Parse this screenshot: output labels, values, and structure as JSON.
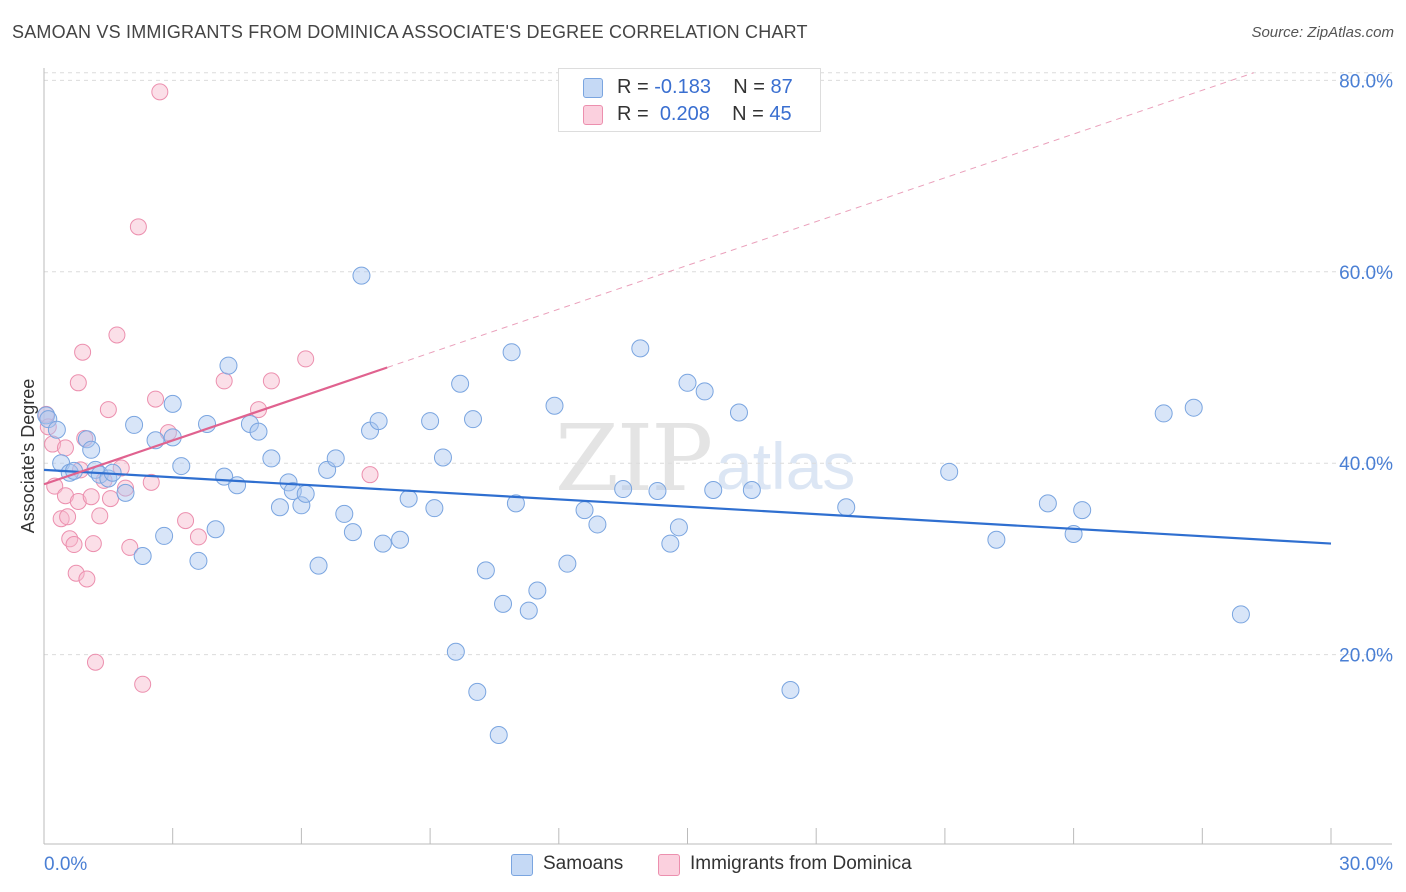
{
  "header": {
    "title": "SAMOAN VS IMMIGRANTS FROM DOMINICA ASSOCIATE'S DEGREE CORRELATION CHART",
    "source": "Source: ZipAtlas.com"
  },
  "watermark": {
    "zip": "ZIP",
    "atlas": "atlas"
  },
  "legend": {
    "rows": [
      {
        "r_label": "R = ",
        "r_value": "-0.183",
        "n_label": "N = ",
        "n_value": "87",
        "color": "#a8c6f0"
      },
      {
        "r_label": "R = ",
        "r_value": "0.208",
        "n_label": "N = ",
        "n_value": "45",
        "color": "#f7b8cc"
      }
    ]
  },
  "bottom_legend": {
    "series1": "Samoans",
    "series2": "Immigrants from Dominica"
  },
  "colors": {
    "samoans_fill": "#a8c6f0",
    "samoans_stroke": "#7aa5e0",
    "samoans_line": "#2f6fd0",
    "dominica_fill": "#f7b8cc",
    "dominica_stroke": "#ec8fae",
    "dominica_line": "#e0628f",
    "axis_text": "#4a7fd4"
  },
  "chart_data": {
    "type": "scatter",
    "title": "SAMOAN VS IMMIGRANTS FROM DOMINICA ASSOCIATE'S DEGREE CORRELATION CHART",
    "xlabel": "",
    "ylabel": "Associate's Degree",
    "xlim": [
      0,
      30
    ],
    "ylim": [
      0,
      82
    ],
    "x_tick_labels": [
      "0.0%",
      "30.0%"
    ],
    "y_ticks": [
      20,
      40,
      60,
      80
    ],
    "y_tick_labels": [
      "20.0%",
      "40.0%",
      "60.0%",
      "80.0%"
    ],
    "grid": "horizontal dashed",
    "legend_position": "top-center",
    "series": [
      {
        "name": "Samoans",
        "stats": {
          "R": -0.183,
          "N": 87
        },
        "trend": {
          "x": [
            0.0,
            30.0
          ],
          "y": [
            39.3,
            31.6
          ],
          "style": "solid"
        },
        "points": [
          [
            0.05,
            45.0
          ],
          [
            0.1,
            44.6
          ],
          [
            0.3,
            43.5
          ],
          [
            0.4,
            40.0
          ],
          [
            0.6,
            39.0
          ],
          [
            0.7,
            39.2
          ],
          [
            1.0,
            42.5
          ],
          [
            1.1,
            41.4
          ],
          [
            1.2,
            39.3
          ],
          [
            1.3,
            38.8
          ],
          [
            1.5,
            38.4
          ],
          [
            1.6,
            39.0
          ],
          [
            1.9,
            36.9
          ],
          [
            2.1,
            44.0
          ],
          [
            2.3,
            30.3
          ],
          [
            2.6,
            42.4
          ],
          [
            2.8,
            32.4
          ],
          [
            3.0,
            42.7
          ],
          [
            3.0,
            46.2
          ],
          [
            3.2,
            39.7
          ],
          [
            3.6,
            29.8
          ],
          [
            3.8,
            44.1
          ],
          [
            4.0,
            33.1
          ],
          [
            4.2,
            38.6
          ],
          [
            4.3,
            50.2
          ],
          [
            4.5,
            37.7
          ],
          [
            4.8,
            44.1
          ],
          [
            5.0,
            43.3
          ],
          [
            5.3,
            40.5
          ],
          [
            5.5,
            35.4
          ],
          [
            5.7,
            38.0
          ],
          [
            5.8,
            37.1
          ],
          [
            6.0,
            35.6
          ],
          [
            6.1,
            36.8
          ],
          [
            6.4,
            29.3
          ],
          [
            6.6,
            39.3
          ],
          [
            6.8,
            40.5
          ],
          [
            7.0,
            34.7
          ],
          [
            7.2,
            32.8
          ],
          [
            7.4,
            59.6
          ],
          [
            7.6,
            43.4
          ],
          [
            7.8,
            44.4
          ],
          [
            7.9,
            31.6
          ],
          [
            8.3,
            32.0
          ],
          [
            8.5,
            36.3
          ],
          [
            9.0,
            44.4
          ],
          [
            9.1,
            35.3
          ],
          [
            9.3,
            40.6
          ],
          [
            9.6,
            20.3
          ],
          [
            9.7,
            48.3
          ],
          [
            10.0,
            44.6
          ],
          [
            10.1,
            16.1
          ],
          [
            10.3,
            28.8
          ],
          [
            10.6,
            11.6
          ],
          [
            10.7,
            25.3
          ],
          [
            10.9,
            51.6
          ],
          [
            11.0,
            35.8
          ],
          [
            11.3,
            24.6
          ],
          [
            11.5,
            26.7
          ],
          [
            11.9,
            46.0
          ],
          [
            12.2,
            29.5
          ],
          [
            12.6,
            35.1
          ],
          [
            12.9,
            33.6
          ],
          [
            13.5,
            37.3
          ],
          [
            13.9,
            52.0
          ],
          [
            14.3,
            37.1
          ],
          [
            14.6,
            31.6
          ],
          [
            14.8,
            33.3
          ],
          [
            15.0,
            48.4
          ],
          [
            15.4,
            47.5
          ],
          [
            15.6,
            37.2
          ],
          [
            16.2,
            45.3
          ],
          [
            16.5,
            37.2
          ],
          [
            17.4,
            16.3
          ],
          [
            18.7,
            35.4
          ],
          [
            21.1,
            39.1
          ],
          [
            22.2,
            32.0
          ],
          [
            23.4,
            35.8
          ],
          [
            24.0,
            32.6
          ],
          [
            24.2,
            35.1
          ],
          [
            26.1,
            45.2
          ],
          [
            26.8,
            45.8
          ],
          [
            27.9,
            24.2
          ]
        ]
      },
      {
        "name": "Immigrants from Dominica",
        "stats": {
          "R": 0.208,
          "N": 45
        },
        "trend_solid": {
          "x": [
            0.0,
            8.0
          ],
          "y": [
            37.8,
            50.0
          ]
        },
        "trend_dashed": {
          "x": [
            8.0,
            28.2
          ],
          "y": [
            50.0,
            80.8
          ]
        },
        "points": [
          [
            0.05,
            45.1
          ],
          [
            0.1,
            43.8
          ],
          [
            0.2,
            42.0
          ],
          [
            0.25,
            37.6
          ],
          [
            0.4,
            34.2
          ],
          [
            0.5,
            41.6
          ],
          [
            0.5,
            36.6
          ],
          [
            0.55,
            34.4
          ],
          [
            0.6,
            32.1
          ],
          [
            0.7,
            31.5
          ],
          [
            0.75,
            28.5
          ],
          [
            0.8,
            48.4
          ],
          [
            0.8,
            36.0
          ],
          [
            0.85,
            39.3
          ],
          [
            0.9,
            51.6
          ],
          [
            0.95,
            42.6
          ],
          [
            1.0,
            27.9
          ],
          [
            1.1,
            36.5
          ],
          [
            1.15,
            31.6
          ],
          [
            1.2,
            19.2
          ],
          [
            1.3,
            34.5
          ],
          [
            1.4,
            38.2
          ],
          [
            1.5,
            45.6
          ],
          [
            1.55,
            36.3
          ],
          [
            1.7,
            53.4
          ],
          [
            1.8,
            39.5
          ],
          [
            1.9,
            37.4
          ],
          [
            2.0,
            31.2
          ],
          [
            2.2,
            64.7
          ],
          [
            2.3,
            16.9
          ],
          [
            2.5,
            38.0
          ],
          [
            2.6,
            46.7
          ],
          [
            2.7,
            78.8
          ],
          [
            2.9,
            43.2
          ],
          [
            3.3,
            34.0
          ],
          [
            3.6,
            32.3
          ],
          [
            4.2,
            48.6
          ],
          [
            5.0,
            45.6
          ],
          [
            5.3,
            48.6
          ],
          [
            6.1,
            50.9
          ],
          [
            7.6,
            38.8
          ]
        ]
      }
    ]
  }
}
